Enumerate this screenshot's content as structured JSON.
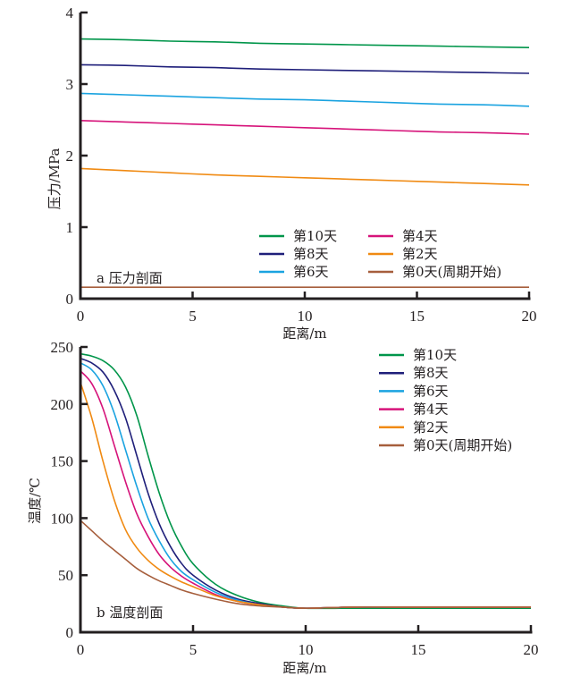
{
  "chart_data": [
    {
      "type": "line",
      "title": "",
      "panel_label": "a 压力剖面",
      "xlabel": "距离/m",
      "ylabel": "压力/MPa",
      "xlim": [
        0,
        20
      ],
      "ylim": [
        0,
        4
      ],
      "xticks": [
        "0",
        "5",
        "10",
        "15",
        "20"
      ],
      "yticks": [
        "0",
        "1",
        "2",
        "3",
        "4"
      ],
      "grid": false,
      "legend_position": "bottom-right",
      "legend_columns": 2,
      "x": [
        0,
        2,
        4,
        6,
        8,
        10,
        12,
        14,
        16,
        18,
        20
      ],
      "series": [
        {
          "name": "第10天",
          "color": "#00954a",
          "values": [
            3.63,
            3.62,
            3.6,
            3.59,
            3.57,
            3.56,
            3.55,
            3.54,
            3.53,
            3.52,
            3.51
          ]
        },
        {
          "name": "第8天",
          "color": "#1f1f7a",
          "values": [
            3.27,
            3.26,
            3.24,
            3.23,
            3.21,
            3.2,
            3.19,
            3.18,
            3.17,
            3.16,
            3.15
          ]
        },
        {
          "name": "第6天",
          "color": "#1aa3e0",
          "values": [
            2.87,
            2.85,
            2.83,
            2.81,
            2.79,
            2.78,
            2.76,
            2.74,
            2.72,
            2.71,
            2.69
          ]
        },
        {
          "name": "第4天",
          "color": "#d6137a",
          "values": [
            2.49,
            2.47,
            2.45,
            2.43,
            2.41,
            2.39,
            2.37,
            2.35,
            2.33,
            2.32,
            2.3
          ]
        },
        {
          "name": "第2天",
          "color": "#f08a12",
          "values": [
            1.82,
            1.79,
            1.76,
            1.73,
            1.71,
            1.69,
            1.67,
            1.65,
            1.63,
            1.61,
            1.59
          ]
        },
        {
          "name": "第0天(周期开始)",
          "color": "#a65e3c",
          "values": [
            0.16,
            0.16,
            0.16,
            0.16,
            0.16,
            0.16,
            0.16,
            0.16,
            0.16,
            0.16,
            0.16
          ]
        }
      ]
    },
    {
      "type": "line",
      "title": "",
      "panel_label": "b 温度剖面",
      "xlabel": "距离/m",
      "ylabel": "温度/℃",
      "xlim": [
        0,
        20
      ],
      "ylim": [
        0,
        250
      ],
      "xticks": [
        "0",
        "5",
        "10",
        "15",
        "20"
      ],
      "yticks": [
        "0",
        "50",
        "100",
        "150",
        "200",
        "250"
      ],
      "grid": false,
      "legend_position": "top-right",
      "legend_columns": 1,
      "x": [
        0,
        0.5,
        1,
        1.5,
        2,
        2.5,
        3,
        3.5,
        4,
        4.5,
        5,
        6,
        7,
        8,
        9,
        10,
        12,
        14,
        16,
        18,
        20
      ],
      "series": [
        {
          "name": "第10天",
          "color": "#00954a",
          "values": [
            244,
            242,
            238,
            230,
            215,
            190,
            155,
            122,
            95,
            75,
            60,
            42,
            32,
            26,
            23,
            21,
            21,
            21,
            21,
            21,
            21
          ]
        },
        {
          "name": "第8天",
          "color": "#1f1f7a",
          "values": [
            240,
            236,
            228,
            212,
            188,
            155,
            122,
            95,
            75,
            60,
            50,
            37,
            29,
            25,
            22,
            21,
            22,
            22,
            22,
            22,
            22
          ]
        },
        {
          "name": "第6天",
          "color": "#1aa3e0",
          "values": [
            236,
            230,
            216,
            192,
            160,
            128,
            100,
            80,
            64,
            53,
            46,
            35,
            28,
            24,
            22,
            21,
            22,
            22,
            22,
            22,
            22
          ]
        },
        {
          "name": "第4天",
          "color": "#d6137a",
          "values": [
            229,
            218,
            196,
            164,
            132,
            104,
            84,
            68,
            57,
            49,
            43,
            33,
            27,
            24,
            22,
            21,
            22,
            22,
            22,
            22,
            22
          ]
        },
        {
          "name": "第2天",
          "color": "#f08a12",
          "values": [
            219,
            188,
            150,
            116,
            90,
            74,
            63,
            55,
            49,
            44,
            40,
            32,
            27,
            24,
            22,
            21,
            22,
            22,
            22,
            22,
            22
          ]
        },
        {
          "name": "第0天(周期开始)",
          "color": "#a65e3c",
          "values": [
            98,
            89,
            80,
            72,
            64,
            56,
            50,
            45,
            41,
            37,
            34,
            29,
            25,
            23,
            22,
            21,
            22,
            22,
            22,
            22,
            22
          ]
        }
      ]
    }
  ]
}
